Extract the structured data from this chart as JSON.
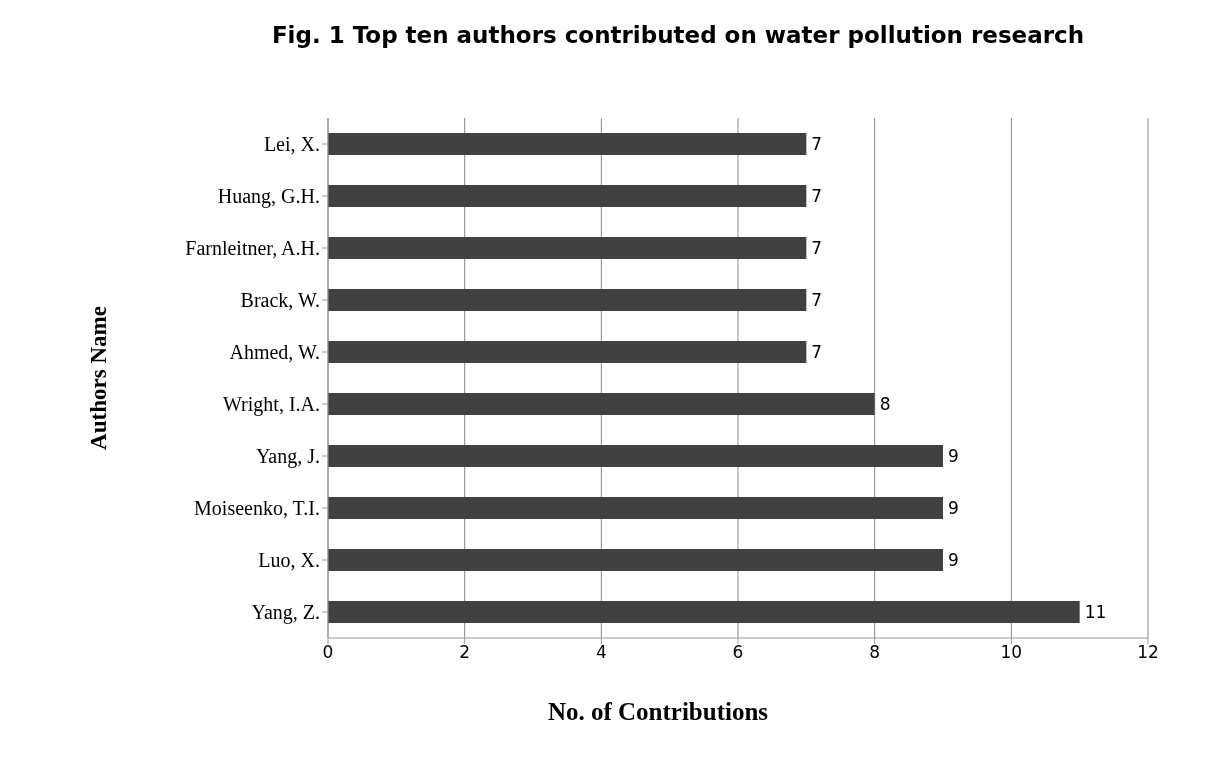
{
  "chart_data": {
    "type": "bar",
    "orientation": "horizontal",
    "title": "Fig. 1 Top ten authors contributed on water pollution research",
    "xlabel": "No. of Contributions",
    "ylabel": "Authors Name",
    "categories": [
      "Lei, X.",
      "Huang, G.H.",
      "Farnleitner, A.H.",
      "Brack, W.",
      "Ahmed, W.",
      "Wright, I.A.",
      "Yang, J.",
      "Moiseenko, T.I.",
      "Luo, X.",
      "Yang, Z."
    ],
    "values": [
      7,
      7,
      7,
      7,
      7,
      8,
      9,
      9,
      9,
      11
    ],
    "color": "#404040",
    "xlim": [
      0,
      12
    ],
    "xticks": [
      0,
      2,
      4,
      6,
      8,
      10,
      12
    ],
    "grid": "x",
    "data_labels": true
  }
}
